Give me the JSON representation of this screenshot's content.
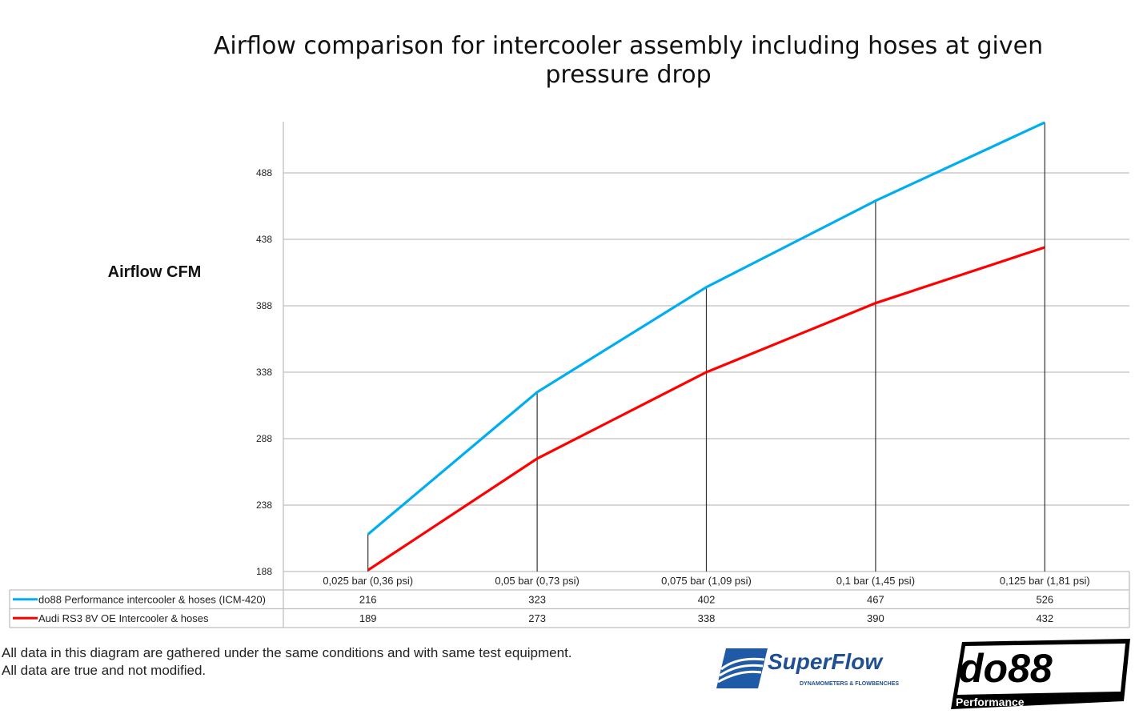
{
  "chart_data": {
    "type": "line",
    "title": "Airflow comparison for intercooler assembly including hoses at given pressure drop",
    "ylabel": "Airflow CFM",
    "xlabel": "",
    "categories": [
      "0,025 bar (0,36 psi)",
      "0,05 bar (0,73 psi)",
      "0,075 bar (1,09 psi)",
      "0,1 bar (1,45 psi)",
      "0,125 bar (1,81 psi)"
    ],
    "yticks": [
      "188",
      "238",
      "288",
      "338",
      "388",
      "438",
      "488"
    ],
    "ylim": [
      188,
      526
    ],
    "grid": true,
    "legend": "data-table-below",
    "series": [
      {
        "name": "do88 Performance intercooler & hoses (ICM-420)",
        "color": "#00aeef",
        "values": [
          216,
          323,
          402,
          467,
          526
        ]
      },
      {
        "name": "Audi RS3 8V OE Intercooler & hoses",
        "color": "#ff0000",
        "values": [
          189,
          273,
          338,
          390,
          432
        ]
      }
    ]
  },
  "footnote": {
    "line1": "All data in this diagram are gathered under the same conditions and with same test equipment.",
    "line2": "All data are true and not modified."
  },
  "logos": {
    "superflow": "SuperFlow",
    "superflow_sub": "DYNAMOMETERS & FLOWBENCHES",
    "do88": "do88",
    "do88_sub": "Performance"
  }
}
